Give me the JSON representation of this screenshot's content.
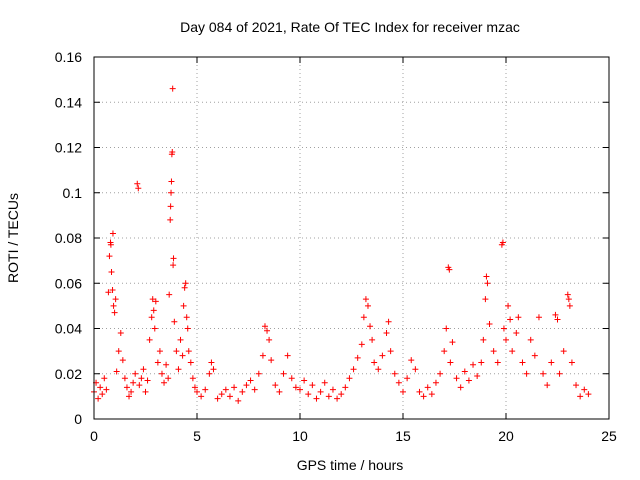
{
  "chart_data": {
    "type": "scatter",
    "title": "Day 084 of 2021, Rate Of TEC Index for receiver mzac",
    "xlabel": "GPS time / hours",
    "ylabel": "ROTI / TECUs",
    "xlim": [
      0,
      25
    ],
    "ylim": [
      0,
      0.16
    ],
    "xticks": [
      0,
      5,
      10,
      15,
      20,
      25
    ],
    "xtick_labels": [
      "0",
      "5",
      "10",
      "15",
      "20",
      "25"
    ],
    "yticks": [
      0,
      0.02,
      0.04,
      0.06,
      0.08,
      0.1,
      0.12,
      0.14,
      0.16
    ],
    "ytick_labels": [
      "0",
      "0.02",
      "0.04",
      "0.06",
      "0.08",
      "0.1",
      "0.12",
      "0.14",
      "0.16"
    ],
    "grid": true,
    "marker": "+",
    "color": "#ff0000",
    "series": [
      {
        "name": "ROTI",
        "points": [
          [
            0.0,
            0.012
          ],
          [
            0.1,
            0.016
          ],
          [
            0.2,
            0.009
          ],
          [
            0.3,
            0.014
          ],
          [
            0.4,
            0.011
          ],
          [
            0.5,
            0.018
          ],
          [
            0.6,
            0.013
          ],
          [
            0.7,
            0.056
          ],
          [
            0.75,
            0.072
          ],
          [
            0.8,
            0.078
          ],
          [
            0.82,
            0.077
          ],
          [
            0.85,
            0.065
          ],
          [
            0.9,
            0.057
          ],
          [
            0.92,
            0.082
          ],
          [
            0.95,
            0.05
          ],
          [
            1.0,
            0.047
          ],
          [
            1.05,
            0.053
          ],
          [
            1.1,
            0.021
          ],
          [
            1.2,
            0.03
          ],
          [
            1.3,
            0.038
          ],
          [
            1.4,
            0.026
          ],
          [
            1.5,
            0.018
          ],
          [
            1.6,
            0.014
          ],
          [
            1.7,
            0.01
          ],
          [
            1.8,
            0.012
          ],
          [
            1.9,
            0.016
          ],
          [
            2.0,
            0.02
          ],
          [
            2.1,
            0.104
          ],
          [
            2.15,
            0.102
          ],
          [
            2.2,
            0.015
          ],
          [
            2.3,
            0.018
          ],
          [
            2.4,
            0.022
          ],
          [
            2.5,
            0.012
          ],
          [
            2.6,
            0.017
          ],
          [
            2.7,
            0.035
          ],
          [
            2.8,
            0.045
          ],
          [
            2.85,
            0.053
          ],
          [
            2.9,
            0.048
          ],
          [
            2.95,
            0.04
          ],
          [
            3.0,
            0.052
          ],
          [
            3.1,
            0.025
          ],
          [
            3.2,
            0.03
          ],
          [
            3.3,
            0.02
          ],
          [
            3.4,
            0.016
          ],
          [
            3.5,
            0.024
          ],
          [
            3.6,
            0.018
          ],
          [
            3.65,
            0.055
          ],
          [
            3.7,
            0.088
          ],
          [
            3.72,
            0.094
          ],
          [
            3.74,
            0.1
          ],
          [
            3.76,
            0.105
          ],
          [
            3.78,
            0.117
          ],
          [
            3.8,
            0.118
          ],
          [
            3.82,
            0.146
          ],
          [
            3.84,
            0.068
          ],
          [
            3.86,
            0.071
          ],
          [
            3.9,
            0.043
          ],
          [
            4.0,
            0.03
          ],
          [
            4.1,
            0.022
          ],
          [
            4.2,
            0.035
          ],
          [
            4.3,
            0.028
          ],
          [
            4.35,
            0.05
          ],
          [
            4.4,
            0.058
          ],
          [
            4.45,
            0.06
          ],
          [
            4.5,
            0.045
          ],
          [
            4.55,
            0.04
          ],
          [
            4.6,
            0.03
          ],
          [
            4.7,
            0.025
          ],
          [
            4.8,
            0.018
          ],
          [
            4.9,
            0.014
          ],
          [
            5.0,
            0.012
          ],
          [
            5.2,
            0.01
          ],
          [
            5.4,
            0.013
          ],
          [
            5.6,
            0.02
          ],
          [
            5.7,
            0.025
          ],
          [
            5.8,
            0.022
          ],
          [
            6.0,
            0.009
          ],
          [
            6.2,
            0.011
          ],
          [
            6.4,
            0.013
          ],
          [
            6.6,
            0.01
          ],
          [
            6.8,
            0.014
          ],
          [
            7.0,
            0.008
          ],
          [
            7.2,
            0.012
          ],
          [
            7.4,
            0.015
          ],
          [
            7.6,
            0.017
          ],
          [
            7.8,
            0.013
          ],
          [
            8.0,
            0.02
          ],
          [
            8.2,
            0.028
          ],
          [
            8.3,
            0.041
          ],
          [
            8.4,
            0.039
          ],
          [
            8.5,
            0.035
          ],
          [
            8.6,
            0.026
          ],
          [
            8.8,
            0.015
          ],
          [
            9.0,
            0.012
          ],
          [
            9.2,
            0.02
          ],
          [
            9.4,
            0.028
          ],
          [
            9.6,
            0.018
          ],
          [
            9.8,
            0.014
          ],
          [
            10.0,
            0.013
          ],
          [
            10.2,
            0.017
          ],
          [
            10.4,
            0.011
          ],
          [
            10.6,
            0.015
          ],
          [
            10.8,
            0.009
          ],
          [
            11.0,
            0.012
          ],
          [
            11.2,
            0.016
          ],
          [
            11.4,
            0.01
          ],
          [
            11.6,
            0.013
          ],
          [
            11.8,
            0.009
          ],
          [
            12.0,
            0.011
          ],
          [
            12.2,
            0.014
          ],
          [
            12.4,
            0.018
          ],
          [
            12.6,
            0.022
          ],
          [
            12.8,
            0.027
          ],
          [
            13.0,
            0.033
          ],
          [
            13.1,
            0.045
          ],
          [
            13.2,
            0.053
          ],
          [
            13.3,
            0.05
          ],
          [
            13.4,
            0.041
          ],
          [
            13.5,
            0.035
          ],
          [
            13.6,
            0.025
          ],
          [
            13.8,
            0.022
          ],
          [
            14.0,
            0.028
          ],
          [
            14.2,
            0.038
          ],
          [
            14.3,
            0.043
          ],
          [
            14.4,
            0.03
          ],
          [
            14.6,
            0.02
          ],
          [
            14.8,
            0.016
          ],
          [
            15.0,
            0.012
          ],
          [
            15.2,
            0.018
          ],
          [
            15.4,
            0.026
          ],
          [
            15.6,
            0.022
          ],
          [
            15.8,
            0.012
          ],
          [
            16.0,
            0.01
          ],
          [
            16.2,
            0.014
          ],
          [
            16.4,
            0.011
          ],
          [
            16.6,
            0.016
          ],
          [
            16.8,
            0.02
          ],
          [
            17.0,
            0.03
          ],
          [
            17.1,
            0.04
          ],
          [
            17.2,
            0.067
          ],
          [
            17.25,
            0.066
          ],
          [
            17.3,
            0.025
          ],
          [
            17.4,
            0.034
          ],
          [
            17.6,
            0.018
          ],
          [
            17.8,
            0.014
          ],
          [
            18.0,
            0.021
          ],
          [
            18.2,
            0.017
          ],
          [
            18.4,
            0.024
          ],
          [
            18.6,
            0.019
          ],
          [
            18.8,
            0.025
          ],
          [
            18.9,
            0.035
          ],
          [
            19.0,
            0.053
          ],
          [
            19.05,
            0.063
          ],
          [
            19.1,
            0.06
          ],
          [
            19.2,
            0.042
          ],
          [
            19.4,
            0.03
          ],
          [
            19.6,
            0.025
          ],
          [
            19.8,
            0.077
          ],
          [
            19.85,
            0.078
          ],
          [
            19.9,
            0.04
          ],
          [
            20.0,
            0.035
          ],
          [
            20.1,
            0.05
          ],
          [
            20.2,
            0.044
          ],
          [
            20.3,
            0.03
          ],
          [
            20.5,
            0.038
          ],
          [
            20.6,
            0.045
          ],
          [
            20.8,
            0.025
          ],
          [
            21.0,
            0.02
          ],
          [
            21.2,
            0.035
          ],
          [
            21.4,
            0.028
          ],
          [
            21.6,
            0.045
          ],
          [
            21.8,
            0.02
          ],
          [
            22.0,
            0.015
          ],
          [
            22.2,
            0.025
          ],
          [
            22.4,
            0.046
          ],
          [
            22.5,
            0.044
          ],
          [
            22.6,
            0.02
          ],
          [
            22.8,
            0.03
          ],
          [
            23.0,
            0.055
          ],
          [
            23.05,
            0.053
          ],
          [
            23.1,
            0.05
          ],
          [
            23.2,
            0.025
          ],
          [
            23.4,
            0.015
          ],
          [
            23.6,
            0.01
          ],
          [
            23.8,
            0.013
          ],
          [
            24.0,
            0.011
          ]
        ]
      }
    ]
  }
}
